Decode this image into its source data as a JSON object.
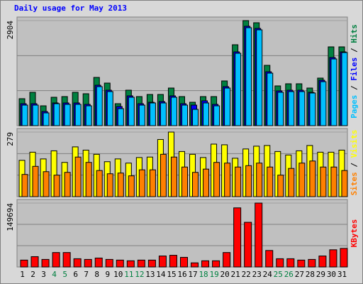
{
  "chart_data": [
    {
      "type": "bar",
      "title": "Daily usage for May 2013",
      "series": [
        {
          "name": "Hits",
          "color": "#008040",
          "values": [
            746,
            922,
            549,
            785,
            804,
            922,
            883,
            1334,
            1177,
            608,
            981,
            804,
            863,
            863,
            1040,
            804,
            647,
            804,
            804,
            1236,
            2237,
            2904,
            2845,
            1668,
            1099,
            1158,
            1158,
            1040,
            1315,
            2178,
            2178
          ]
        },
        {
          "name": "Files",
          "color": "#0000ff",
          "values": [
            608,
            608,
            392,
            628,
            628,
            628,
            589,
            1118,
            981,
            530,
            824,
            608,
            647,
            667,
            824,
            608,
            569,
            687,
            589,
            1079,
            2040,
            2747,
            2688,
            1491,
            961,
            981,
            981,
            922,
            1256,
            1884,
            2040
          ]
        },
        {
          "name": "Pages",
          "color": "#00c0ff",
          "values": [
            569,
            569,
            353,
            608,
            589,
            589,
            549,
            1079,
            942,
            471,
            785,
            569,
            628,
            628,
            785,
            569,
            451,
            628,
            549,
            1040,
            2001,
            2708,
            2649,
            1452,
            922,
            942,
            942,
            903,
            1216,
            1844,
            2021
          ]
        }
      ],
      "ylim": [
        0,
        2904
      ],
      "yticks": [
        2904
      ],
      "ygrid": [
        968,
        1936
      ]
    },
    {
      "type": "bar",
      "series": [
        {
          "name": "Visits",
          "color": "#ffff00",
          "values": [
            157,
            192,
            163,
            198,
            148,
            215,
            201,
            183,
            151,
            163,
            145,
            169,
            171,
            247,
            279,
            195,
            183,
            169,
            227,
            224,
            166,
            206,
            218,
            221,
            195,
            180,
            198,
            221,
            192,
            192,
            201
          ]
        },
        {
          "name": "Sites",
          "color": "#ff8000",
          "values": [
            96,
            131,
            108,
            93,
            105,
            171,
            148,
            113,
            99,
            102,
            90,
            116,
            116,
            183,
            171,
            128,
            105,
            119,
            148,
            145,
            128,
            134,
            145,
            128,
            93,
            122,
            145,
            154,
            128,
            128,
            113
          ]
        }
      ],
      "ylim": [
        0,
        279
      ],
      "yticks": [
        279
      ],
      "ygrid": [
        93,
        186
      ]
    },
    {
      "type": "bar",
      "categories": [
        "1",
        "2",
        "3",
        "4",
        "5",
        "6",
        "7",
        "8",
        "9",
        "10",
        "11",
        "12",
        "13",
        "14",
        "15",
        "16",
        "17",
        "18",
        "19",
        "20",
        "21",
        "22",
        "23",
        "24",
        "25",
        "26",
        "27",
        "28",
        "29",
        "30",
        "31"
      ],
      "x_label_colors": [
        "#000000",
        "#000000",
        "#000000",
        "#008040",
        "#008040",
        "#000000",
        "#000000",
        "#000000",
        "#000000",
        "#000000",
        "#008040",
        "#008040",
        "#000000",
        "#000000",
        "#000000",
        "#000000",
        "#000000",
        "#008040",
        "#008040",
        "#000000",
        "#000000",
        "#000000",
        "#000000",
        "#000000",
        "#008040",
        "#008040",
        "#000000",
        "#000000",
        "#000000",
        "#000000",
        "#000000"
      ],
      "series": [
        {
          "name": "KBytes",
          "color": "#ff0000",
          "values": [
            16100,
            24150,
            17710,
            33810,
            33810,
            19320,
            17710,
            20930,
            17710,
            16100,
            14490,
            16100,
            16100,
            25760,
            27370,
            22540,
            9660,
            14490,
            14490,
            33810,
            138460,
            104650,
            149694,
            38640,
            19320,
            19320,
            16100,
            17710,
            25760,
            40250,
            43470
          ]
        }
      ],
      "ylim": [
        0,
        149694
      ],
      "yticks": [
        149694
      ],
      "ygrid": [
        49898,
        99796
      ]
    }
  ]
}
